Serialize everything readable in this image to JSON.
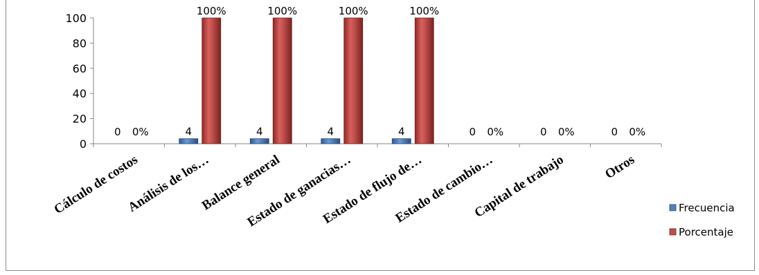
{
  "chart_data": {
    "type": "bar",
    "title": "",
    "categories": [
      "Cálculo de costos",
      "Análisis de los…",
      "Balance general",
      "Estado de ganacias…",
      "Estado de flujo de…",
      "Estado de cambio…",
      "Capital de trabajo",
      "Otros"
    ],
    "series": [
      {
        "name": "Frecuencia",
        "values": [
          0,
          4,
          4,
          4,
          4,
          0,
          0,
          0
        ],
        "labels": [
          "0",
          "4",
          "4",
          "4",
          "4",
          "0",
          "0",
          "0"
        ],
        "color": "#4f81bd"
      },
      {
        "name": "Porcentaje",
        "values": [
          0,
          100,
          100,
          100,
          100,
          0,
          0,
          0
        ],
        "labels": [
          "0%",
          "100%",
          "100%",
          "100%",
          "100%",
          "0%",
          "0%",
          "0%"
        ],
        "color": "#c0504d"
      }
    ],
    "yticks": [
      "0",
      "20",
      "40",
      "60",
      "80",
      "100"
    ],
    "ylim": [
      0,
      100
    ],
    "legend": "right",
    "grid": false
  }
}
